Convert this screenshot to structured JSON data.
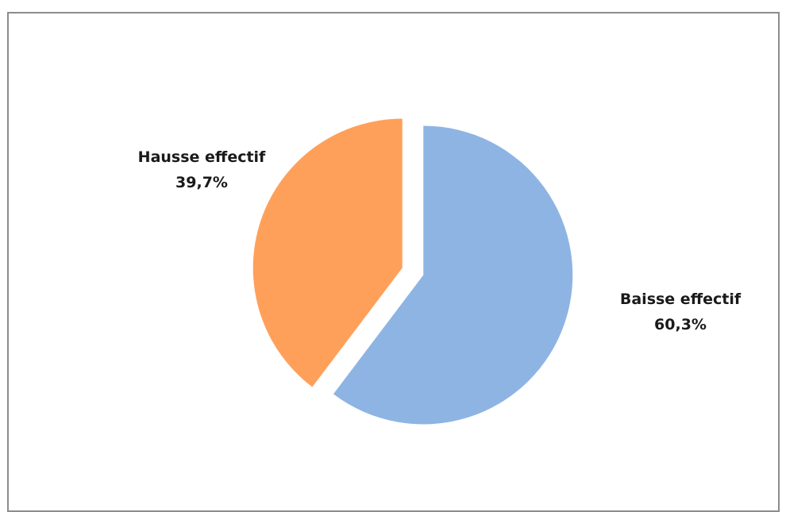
{
  "chart_data": {
    "type": "pie",
    "title": "",
    "slices": [
      {
        "name": "Baisse effectif",
        "value": 60.3,
        "label": "60,3%",
        "color": "#8eb4e3"
      },
      {
        "name": "Hausse effectif",
        "value": 39.7,
        "label": "39,7%",
        "color": "#ffa05a"
      }
    ],
    "start": "12 o'clock",
    "direction": "clockwise",
    "exploded": true,
    "legend": "none"
  }
}
